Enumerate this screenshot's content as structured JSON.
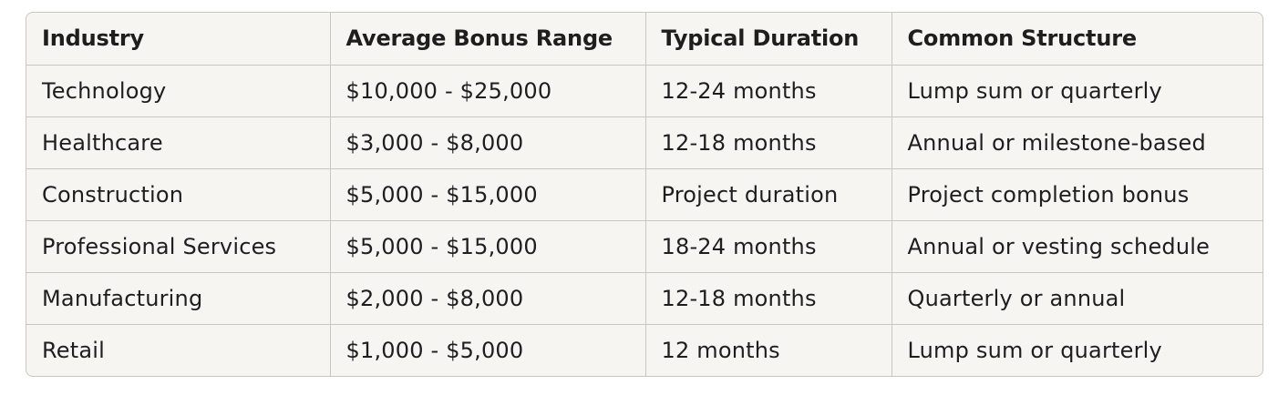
{
  "table": {
    "headers": [
      "Industry",
      "Average Bonus Range",
      "Typical Duration",
      "Common Structure"
    ],
    "rows": [
      [
        "Technology",
        "$10,000 - $25,000",
        "12-24 months",
        "Lump sum or quarterly"
      ],
      [
        "Healthcare",
        "$3,000 - $8,000",
        "12-18 months",
        "Annual or milestone-based"
      ],
      [
        "Construction",
        "$5,000 - $15,000",
        "Project duration",
        "Project completion bonus"
      ],
      [
        "Professional Services",
        "$5,000 - $15,000",
        "18-24 months",
        "Annual or vesting schedule"
      ],
      [
        "Manufacturing",
        "$2,000 - $8,000",
        "12-18 months",
        "Quarterly or annual"
      ],
      [
        "Retail",
        "$1,000 - $5,000",
        "12 months",
        "Lump sum or quarterly"
      ]
    ]
  }
}
